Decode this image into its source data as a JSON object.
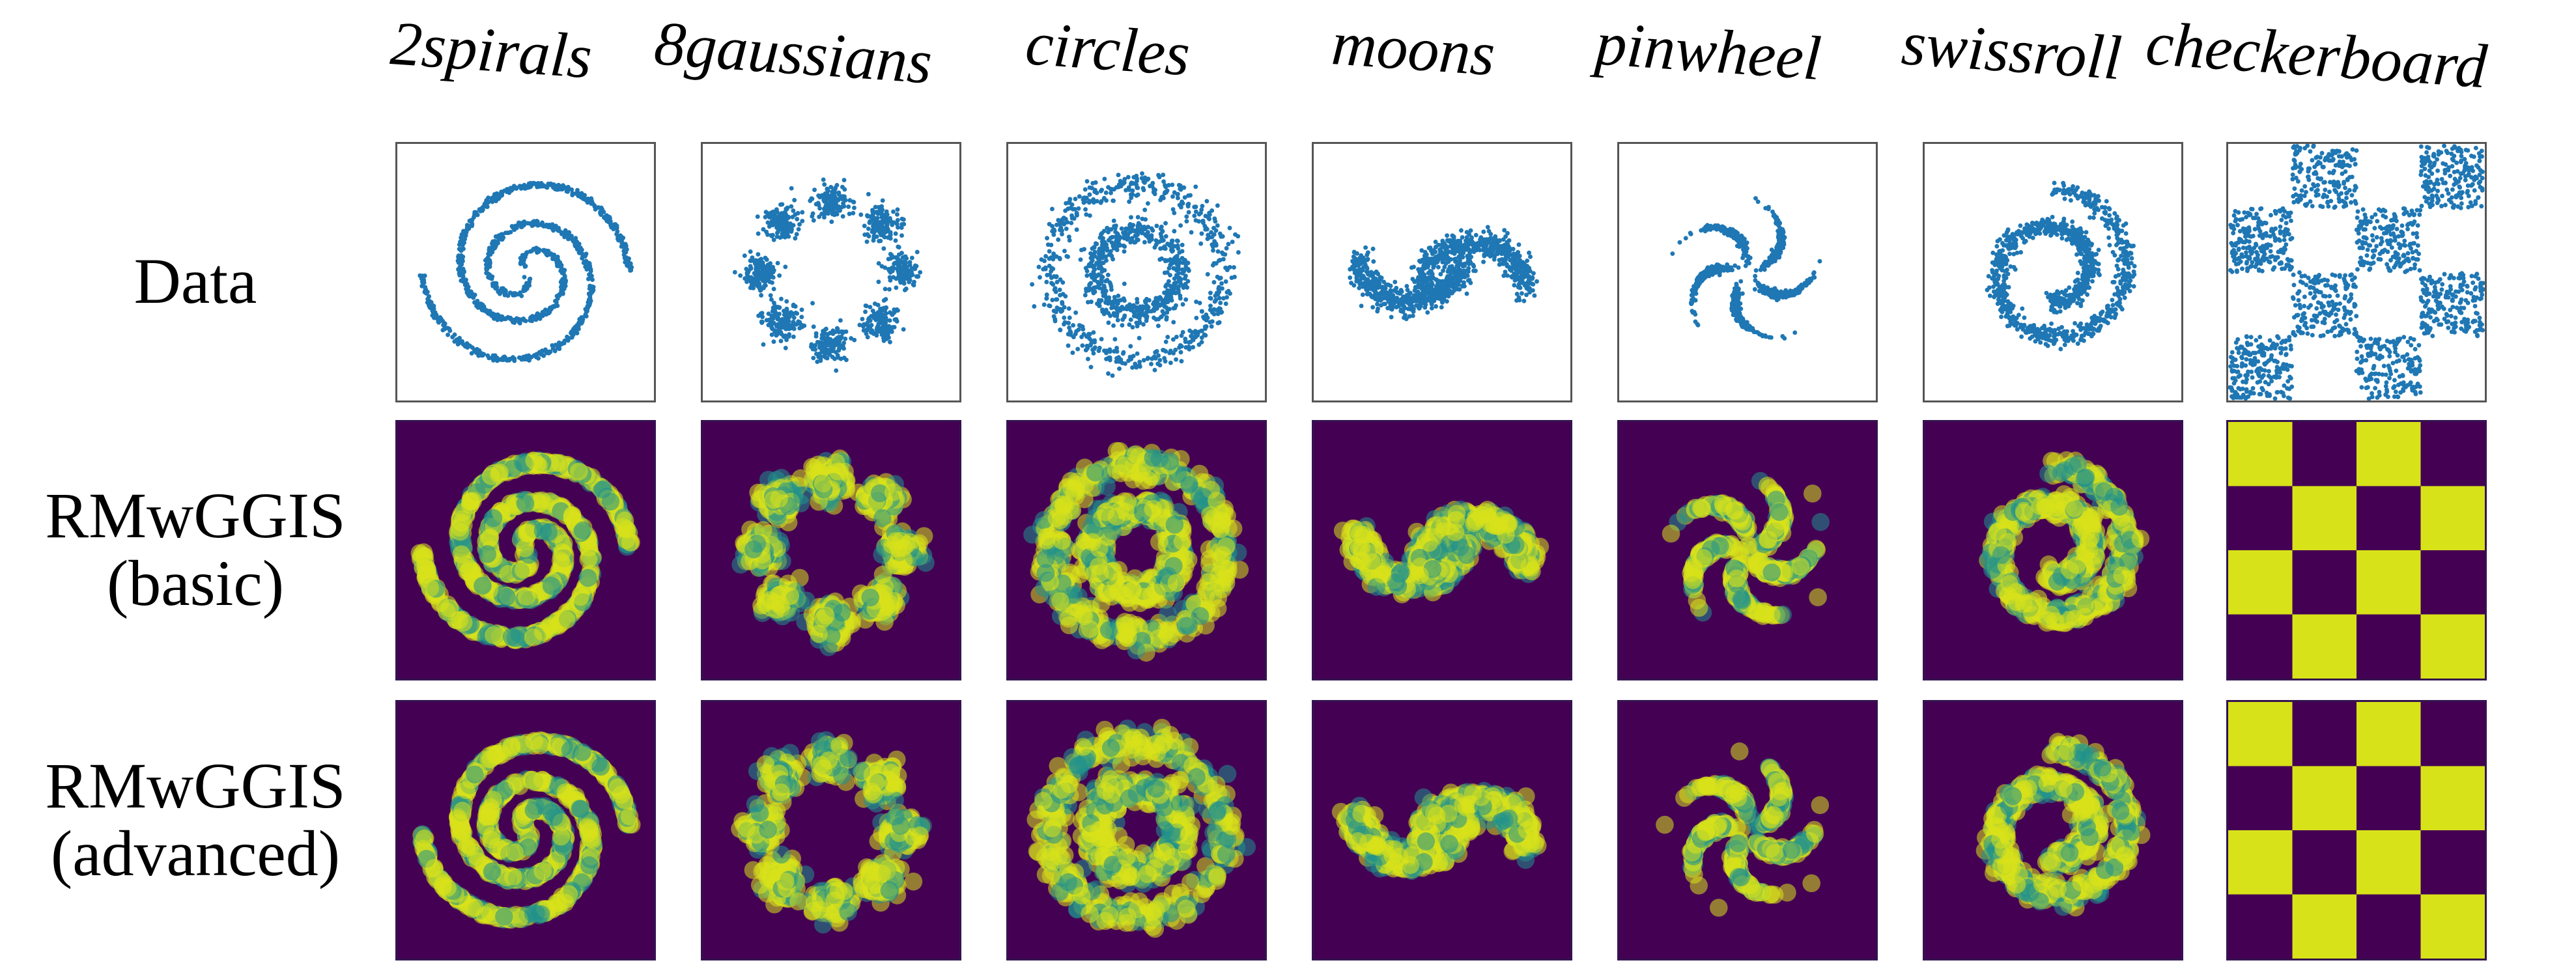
{
  "figure": {
    "datasets": [
      "2spirals",
      "8gaussians",
      "circles",
      "moons",
      "pinwheel",
      "swissroll",
      "checkerboard"
    ],
    "rows": [
      {
        "label": "Data",
        "kind": "data"
      },
      {
        "label": "RMwGGIS\n(basic)",
        "kind": "density"
      },
      {
        "label": "RMwGGIS\n(advanced)",
        "kind": "density"
      }
    ],
    "colors": {
      "scatter": "#1f77b4",
      "viridis_low": "#440154",
      "viridis_mid": "#21918c",
      "viridis_high": "#d8e219",
      "viridis_peak": "#fde725"
    }
  }
}
